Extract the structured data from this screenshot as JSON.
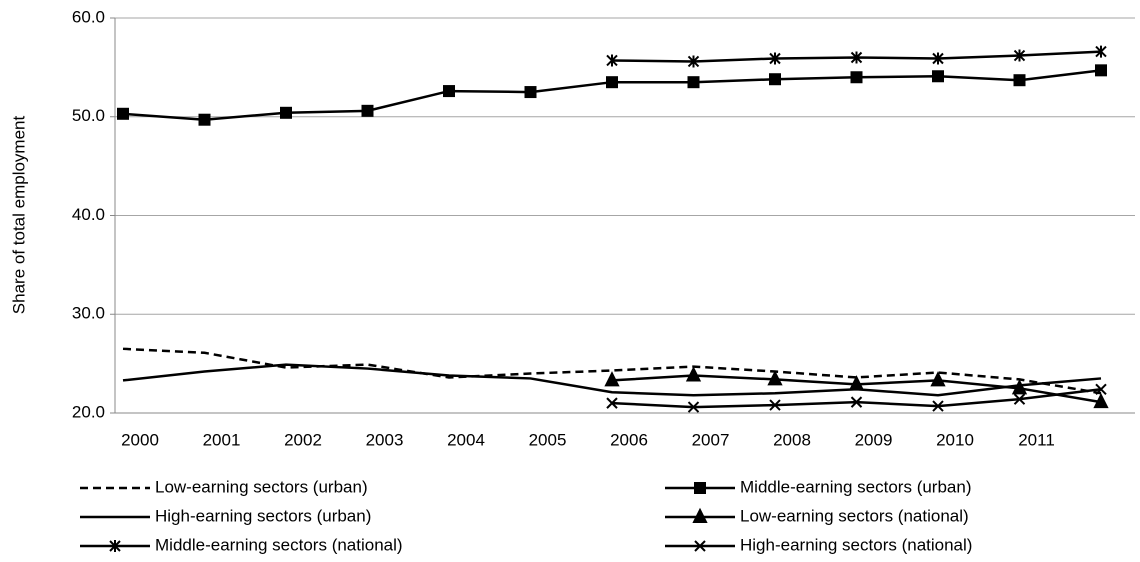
{
  "chart_data": {
    "type": "line",
    "y_label": "Share of total employment",
    "categories": [
      "2000",
      "2001",
      "2002",
      "2003",
      "2004",
      "2005",
      "2006",
      "2007",
      "2008",
      "2009",
      "2010",
      "2011",
      null
    ],
    "ylim": [
      20,
      60
    ],
    "yticks": [
      {
        "value": 20,
        "label": "20.0"
      },
      {
        "value": 30,
        "label": "30.0"
      },
      {
        "value": 40,
        "label": "40.0"
      },
      {
        "value": 50,
        "label": "50.0"
      },
      {
        "value": 60,
        "label": "60.0"
      }
    ],
    "grid": true,
    "series": [
      {
        "name": "Low-earning sectors (urban)",
        "color": "#000000",
        "dash": true,
        "marker": "none",
        "values": [
          26.5,
          26.1,
          24.6,
          24.9,
          23.6,
          24.0,
          24.3,
          24.7,
          24.2,
          23.6,
          24.1,
          23.4,
          22.0
        ]
      },
      {
        "name": "Middle-earning sectors (urban)",
        "color": "#000000",
        "dash": false,
        "marker": "square",
        "values": [
          50.3,
          49.7,
          50.4,
          50.6,
          52.6,
          52.5,
          53.5,
          53.5,
          53.8,
          54.0,
          54.1,
          53.7,
          54.7
        ]
      },
      {
        "name": "High-earning sectors (urban)",
        "color": "#000000",
        "dash": false,
        "marker": "none",
        "values": [
          23.3,
          24.2,
          24.9,
          24.5,
          23.8,
          23.5,
          22.1,
          21.8,
          22.0,
          22.4,
          21.8,
          22.8,
          23.5
        ]
      },
      {
        "name": "Low-earning sectors (national)",
        "color": "#000000",
        "dash": false,
        "marker": "triangle",
        "values": [
          null,
          null,
          null,
          null,
          null,
          null,
          23.3,
          23.8,
          23.4,
          22.9,
          23.3,
          22.5,
          21.1
        ]
      },
      {
        "name": "Middle-earning sectors (national)",
        "color": "#000000",
        "dash": false,
        "marker": "asterisk",
        "values": [
          null,
          null,
          null,
          null,
          null,
          null,
          55.7,
          55.6,
          55.9,
          56.0,
          55.9,
          56.2,
          56.6
        ]
      },
      {
        "name": "High-earning sectors (national)",
        "color": "#000000",
        "dash": false,
        "marker": "x",
        "values": [
          null,
          null,
          null,
          null,
          null,
          null,
          21.0,
          20.6,
          20.8,
          21.1,
          20.7,
          21.4,
          22.4
        ]
      }
    ]
  }
}
